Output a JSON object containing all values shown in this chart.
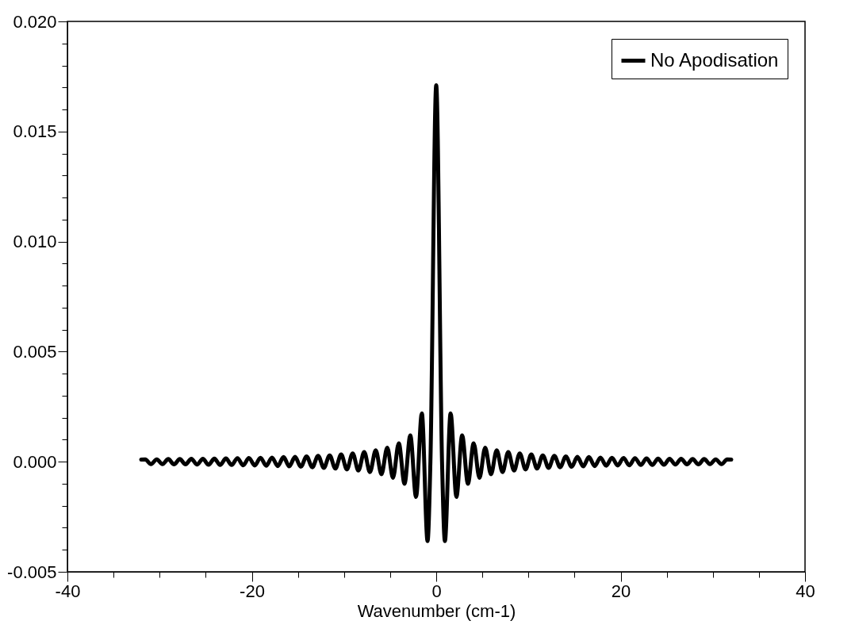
{
  "chart_data": {
    "type": "line",
    "xlabel": "Wavenumber (cm-1)",
    "x": [
      -32,
      -31.56,
      -30.94,
      -30.31,
      -29.69,
      -29.06,
      -28.44,
      -27.81,
      -27.19,
      -26.56,
      -25.94,
      -25.31,
      -24.69,
      -24.06,
      -23.44,
      -22.81,
      -22.19,
      -21.56,
      -20.94,
      -20.31,
      -19.69,
      -19.06,
      -18.44,
      -17.81,
      -17.19,
      -16.56,
      -15.94,
      -15.31,
      -14.69,
      -14.06,
      -13.44,
      -12.81,
      -12.19,
      -11.56,
      -10.94,
      -10.31,
      -9.69,
      -9.06,
      -8.44,
      -7.81,
      -7.19,
      -6.56,
      -5.94,
      -5.31,
      -4.69,
      -4.06,
      -3.44,
      -2.81,
      -2.19,
      -1.56,
      -0.94,
      -0.63,
      0,
      0.63,
      0.94,
      1.56,
      2.19,
      2.81,
      3.44,
      4.06,
      4.69,
      5.31,
      5.94,
      6.56,
      7.19,
      7.81,
      8.44,
      9.06,
      9.69,
      10.31,
      10.94,
      11.56,
      12.19,
      12.81,
      13.44,
      14.06,
      14.69,
      15.31,
      15.94,
      16.56,
      17.19,
      17.81,
      18.44,
      19.06,
      19.69,
      20.31,
      20.94,
      21.56,
      22.19,
      22.81,
      23.44,
      24.06,
      24.69,
      25.31,
      25.94,
      26.56,
      27.19,
      27.81,
      28.44,
      29.06,
      29.69,
      30.31,
      30.94,
      31.56,
      32
    ],
    "series": [
      {
        "name": "No Apodisation",
        "color": "#000000",
        "values": [
          0.0001,
          0.00011,
          -0.00011,
          0.00011,
          -0.00011,
          0.00012,
          -0.00012,
          0.00012,
          -0.00012,
          0.00013,
          -0.00013,
          0.00013,
          -0.00014,
          0.00014,
          -0.00015,
          0.00015,
          -0.00015,
          0.00016,
          -0.00016,
          0.00017,
          -0.00017,
          0.00018,
          -0.00018,
          0.00019,
          -0.0002,
          0.00021,
          -0.00021,
          0.00022,
          -0.00023,
          0.00024,
          -0.00025,
          0.00027,
          -0.00028,
          0.00029,
          -0.00031,
          0.00033,
          -0.00035,
          0.00038,
          -0.0004,
          0.00044,
          -0.00047,
          0.00052,
          -0.00057,
          0.00064,
          -0.00073,
          0.00084,
          -0.001,
          0.0012,
          -0.0016,
          0.0022,
          -0.0036,
          0,
          0.0171,
          0,
          -0.0036,
          0.0022,
          -0.0016,
          0.0012,
          -0.001,
          0.00084,
          -0.00073,
          0.00064,
          -0.00057,
          0.00052,
          -0.00047,
          0.00044,
          -0.0004,
          0.00038,
          -0.00035,
          0.00033,
          -0.00031,
          0.00029,
          -0.00028,
          0.00027,
          -0.00025,
          0.00024,
          -0.00023,
          0.00022,
          -0.00021,
          0.00021,
          -0.0002,
          0.00019,
          -0.00018,
          0.00018,
          -0.00017,
          0.00017,
          -0.00016,
          0.00016,
          -0.00015,
          0.00015,
          -0.00015,
          0.00014,
          -0.00014,
          0.00013,
          -0.00013,
          0.00013,
          -0.00012,
          0.00012,
          -0.00012,
          0.00012,
          -0.00011,
          0.00011,
          -0.00011,
          0.00011,
          0.0001
        ]
      }
    ],
    "xlim": [
      -40,
      40
    ],
    "xticks": [
      -40,
      {
        "value": -35,
        "label": null
      },
      {
        "value": -30,
        "label": null
      },
      {
        "value": -25,
        "label": null
      },
      -20,
      {
        "value": -15,
        "label": null
      },
      {
        "value": -10,
        "label": null
      },
      {
        "value": -5,
        "label": null
      },
      0,
      {
        "value": 5,
        "label": null
      },
      {
        "value": 10,
        "label": null
      },
      {
        "value": 15,
        "label": null
      },
      20,
      {
        "value": 25,
        "label": null
      },
      {
        "value": 30,
        "label": null
      },
      {
        "value": 35,
        "label": null
      },
      40
    ],
    "ylim": [
      -0.005,
      0.02
    ],
    "yticks": [
      {
        "value": -0.005,
        "label": "-0.005"
      },
      {
        "value": -0.004,
        "label": null
      },
      {
        "value": -0.003,
        "label": null
      },
      {
        "value": -0.002,
        "label": null
      },
      {
        "value": -0.001,
        "label": null
      },
      {
        "value": 0,
        "label": "0.000"
      },
      {
        "value": 0.001,
        "label": null
      },
      {
        "value": 0.002,
        "label": null
      },
      {
        "value": 0.003,
        "label": null
      },
      {
        "value": 0.004,
        "label": null
      },
      {
        "value": 0.005,
        "label": "0.005"
      },
      {
        "value": 0.006,
        "label": null
      },
      {
        "value": 0.007,
        "label": null
      },
      {
        "value": 0.008,
        "label": null
      },
      {
        "value": 0.009,
        "label": null
      },
      {
        "value": 0.01,
        "label": "0.010"
      },
      {
        "value": 0.011,
        "label": null
      },
      {
        "value": 0.012,
        "label": null
      },
      {
        "value": 0.013,
        "label": null
      },
      {
        "value": 0.014,
        "label": null
      },
      {
        "value": 0.015,
        "label": "0.015"
      },
      {
        "value": 0.016,
        "label": null
      },
      {
        "value": 0.017,
        "label": null
      },
      {
        "value": 0.018,
        "label": null
      },
      {
        "value": 0.019,
        "label": null
      },
      {
        "value": 0.02,
        "label": "0.020"
      }
    ],
    "legend": "top right",
    "grid": false,
    "marker": "none",
    "line_style": "solid"
  }
}
